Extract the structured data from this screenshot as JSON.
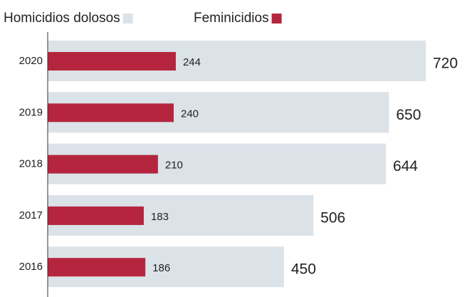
{
  "chart_data": {
    "type": "bar",
    "orientation": "horizontal",
    "categories": [
      "2020",
      "2019",
      "2018",
      "2017",
      "2016"
    ],
    "series": [
      {
        "name": "Homicidios dolosos",
        "color": "#dbe2e8",
        "values": [
          720,
          650,
          644,
          506,
          450
        ]
      },
      {
        "name": "Feminicidios",
        "color": "#b5263e",
        "values": [
          244,
          240,
          210,
          183,
          186
        ]
      }
    ]
  }
}
